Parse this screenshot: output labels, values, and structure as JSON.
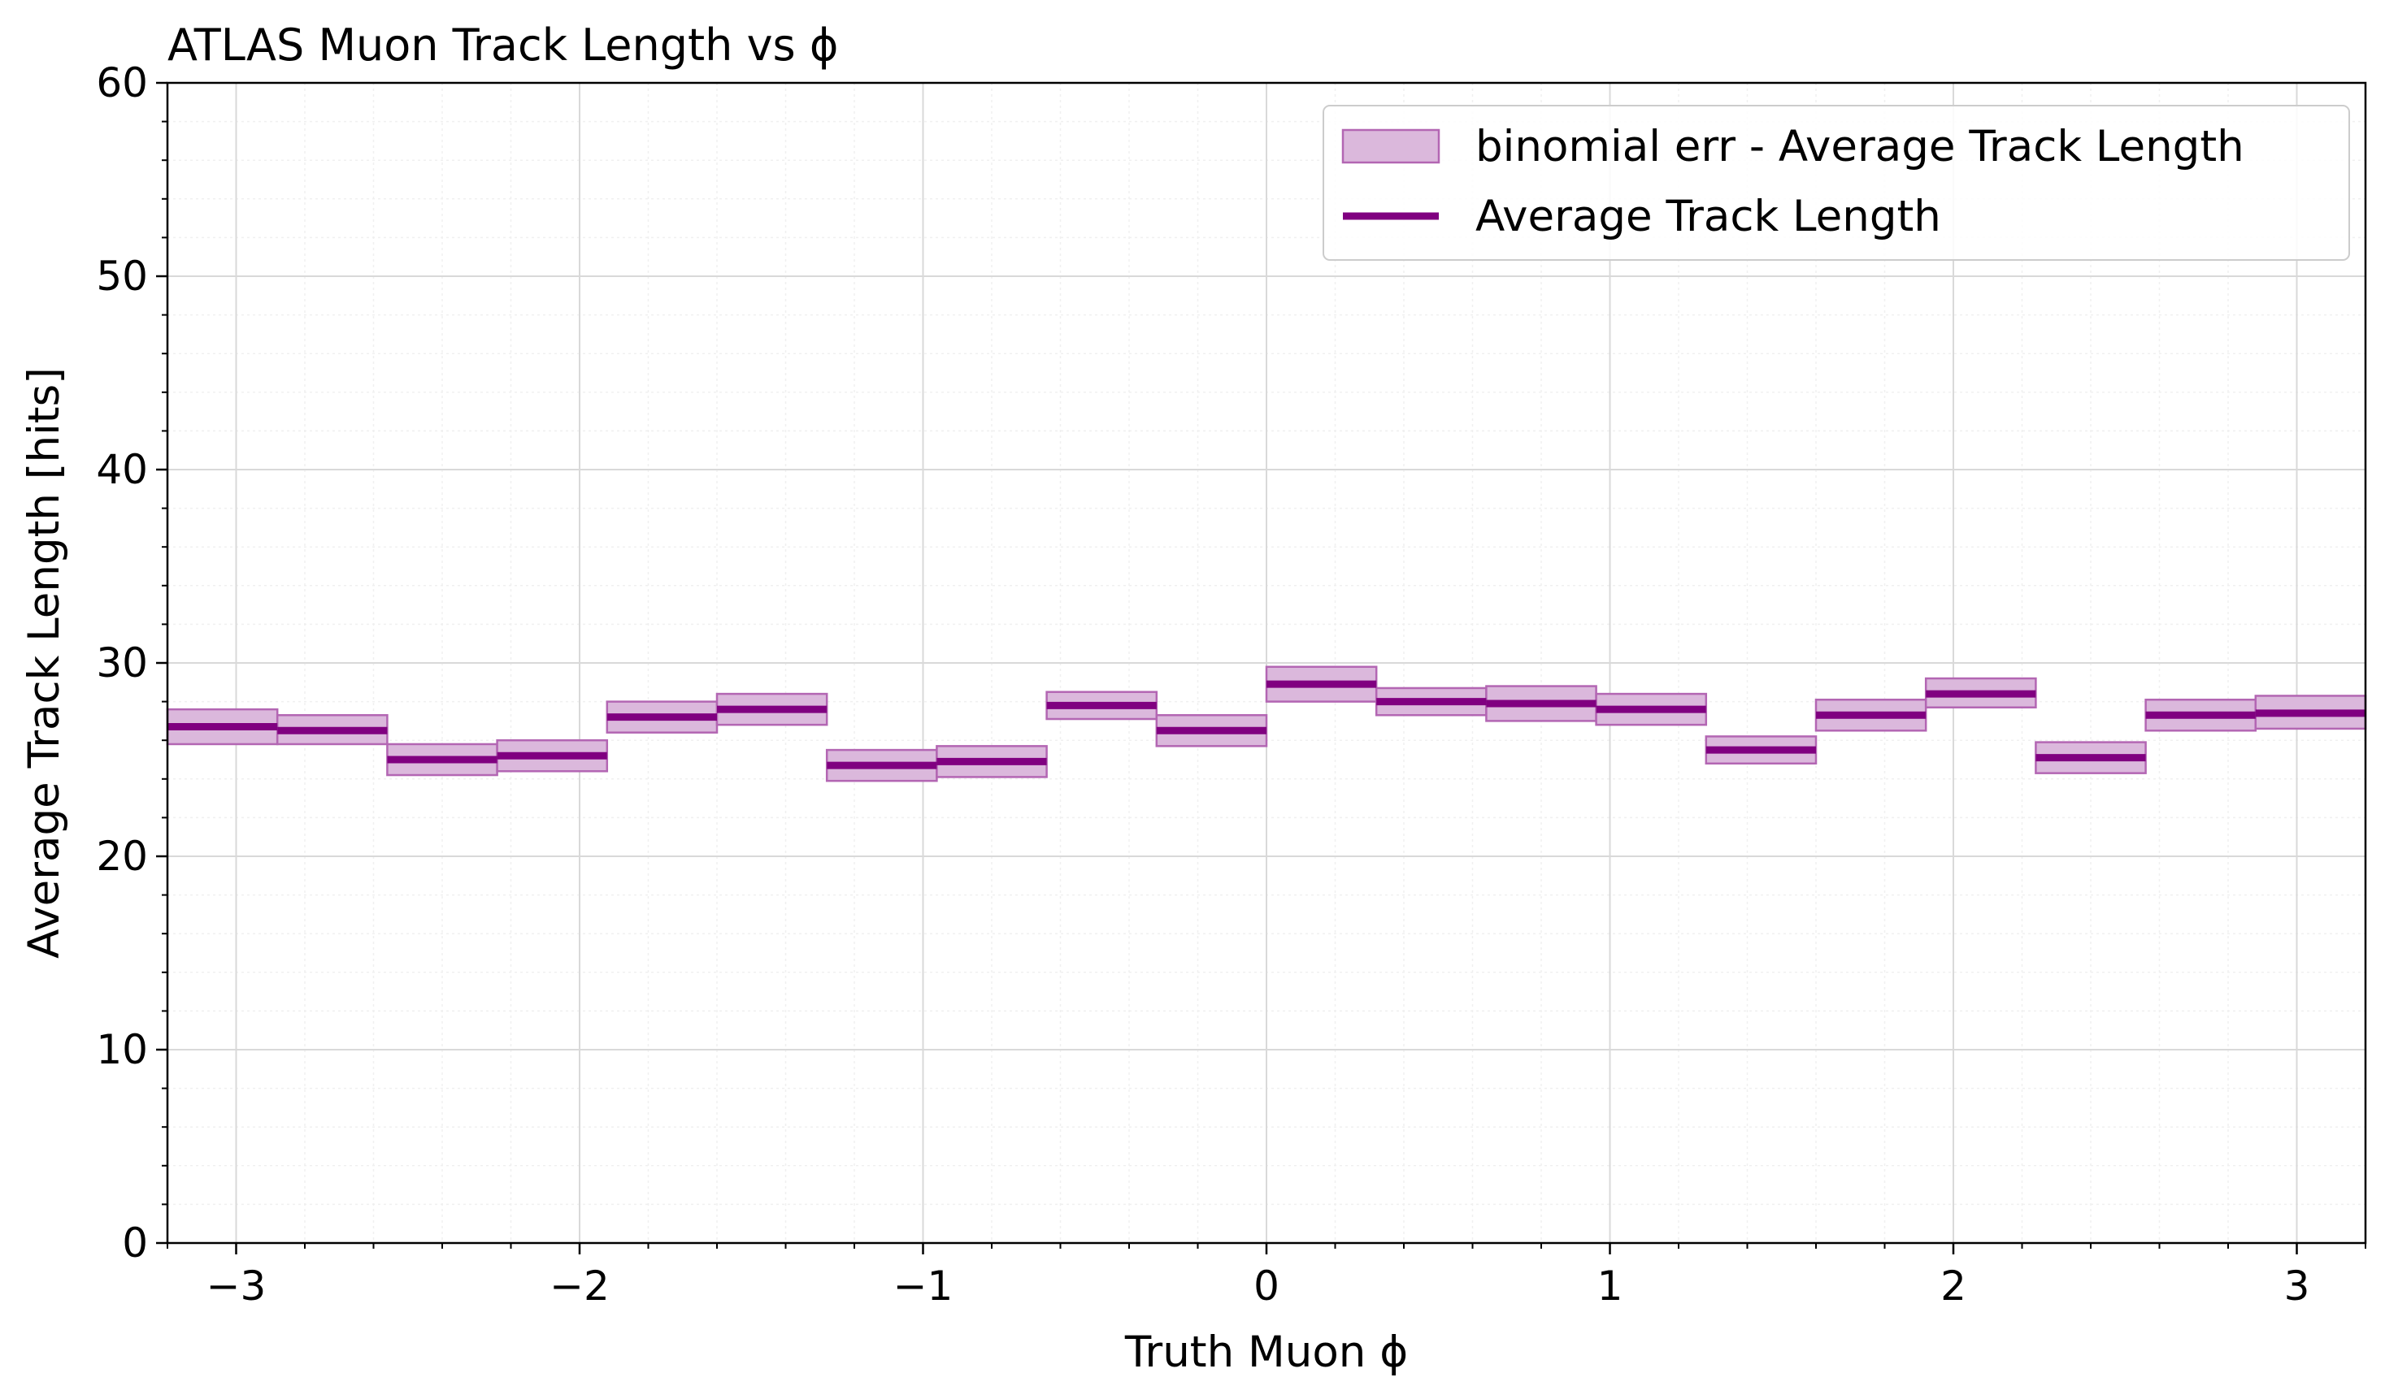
{
  "chart_data": {
    "type": "bar",
    "title": "ATLAS Muon Track Length vs ϕ",
    "xlabel": "Truth Muon ϕ",
    "ylabel": "Average Track Length [hits]",
    "xlim": [
      -3.2,
      3.2
    ],
    "ylim": [
      0,
      60
    ],
    "grid": true,
    "legend_position": "top-right",
    "x_ticks": [
      -3,
      -2,
      -1,
      0,
      1,
      2,
      3
    ],
    "x_tick_labels": [
      "−3",
      "−2",
      "−1",
      "0",
      "1",
      "2",
      "3"
    ],
    "y_ticks": [
      0,
      10,
      20,
      30,
      40,
      50,
      60
    ],
    "y_tick_labels": [
      "0",
      "10",
      "20",
      "30",
      "40",
      "50",
      "60"
    ],
    "bin_edges": [
      -3.2,
      -2.88,
      -2.56,
      -2.24,
      -1.92,
      -1.6,
      -1.28,
      -0.96,
      -0.64,
      -0.32,
      0.0,
      0.32,
      0.64,
      0.96,
      1.28,
      1.6,
      1.92,
      2.24,
      2.56,
      2.88,
      3.2
    ],
    "series": [
      {
        "name": "Average Track Length",
        "values": [
          26.7,
          26.5,
          25.0,
          25.2,
          27.2,
          27.6,
          24.7,
          24.9,
          27.8,
          26.5,
          28.9,
          28.0,
          27.9,
          27.6,
          25.5,
          27.3,
          28.4,
          25.1,
          27.3,
          27.4
        ],
        "err_low": [
          25.8,
          25.8,
          24.2,
          24.4,
          26.4,
          26.8,
          23.9,
          24.1,
          27.1,
          25.7,
          28.0,
          27.3,
          27.0,
          26.8,
          24.8,
          26.5,
          27.7,
          24.3,
          26.5,
          26.6
        ],
        "err_high": [
          27.6,
          27.3,
          25.8,
          26.0,
          28.0,
          28.4,
          25.5,
          25.7,
          28.5,
          27.3,
          29.8,
          28.7,
          28.8,
          28.4,
          26.2,
          28.1,
          29.2,
          25.9,
          28.1,
          28.3
        ]
      }
    ],
    "legend": [
      {
        "label": "binomial err - Average Track Length",
        "kind": "band"
      },
      {
        "label": "Average Track Length",
        "kind": "line"
      }
    ],
    "colors": {
      "line": "#800080",
      "band_fill": "#dbb8dc",
      "band_edge": "#b366b3",
      "grid": "#d9d9d9",
      "minor_grid": "#f0f0f0"
    }
  }
}
